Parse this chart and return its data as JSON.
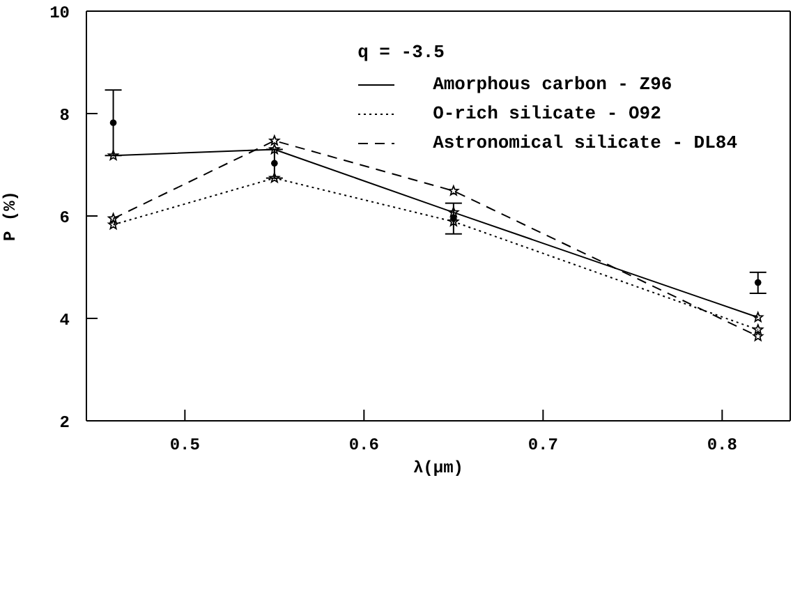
{
  "chart_data": {
    "type": "line",
    "xlabel": "λ(μm)",
    "ylabel": "P (%)",
    "legend_title": "q = -3.5",
    "legend": "top right",
    "grid": false,
    "marker": "star",
    "xlim": [
      0.445,
      0.838
    ],
    "xticks": [
      0.5,
      0.6,
      0.7,
      0.8
    ],
    "ylim": [
      2,
      10
    ],
    "yticks": [
      2,
      4,
      6,
      8,
      10
    ],
    "series": [
      {
        "name": "Amorphous carbon - Z96",
        "color": "#000000",
        "line_style": "solid",
        "x": [
          0.46,
          0.55,
          0.65,
          0.82
        ],
        "values": [
          7.18,
          7.3,
          6.07,
          4.02
        ]
      },
      {
        "name": "O-rich silicate - O92",
        "color": "#000000",
        "line_style": "dotted",
        "x": [
          0.46,
          0.55,
          0.65,
          0.82
        ],
        "values": [
          5.83,
          6.74,
          5.89,
          3.78
        ]
      },
      {
        "name": "Astronomical silicate - DL84",
        "color": "#000000",
        "line_style": "dashed",
        "x": [
          0.46,
          0.55,
          0.65,
          0.82
        ],
        "values": [
          5.95,
          7.47,
          6.49,
          3.65
        ]
      },
      {
        "type": "scatter",
        "color": "#000000",
        "marker": "circle",
        "x": [
          0.46,
          0.55,
          0.65,
          0.82
        ],
        "values": [
          7.82,
          7.03,
          5.95,
          4.7
        ],
        "errors": [
          [
            7.18,
            8.46
          ],
          [
            6.74,
            7.3
          ],
          [
            5.65,
            6.25
          ],
          [
            4.49,
            4.9
          ]
        ]
      }
    ]
  }
}
